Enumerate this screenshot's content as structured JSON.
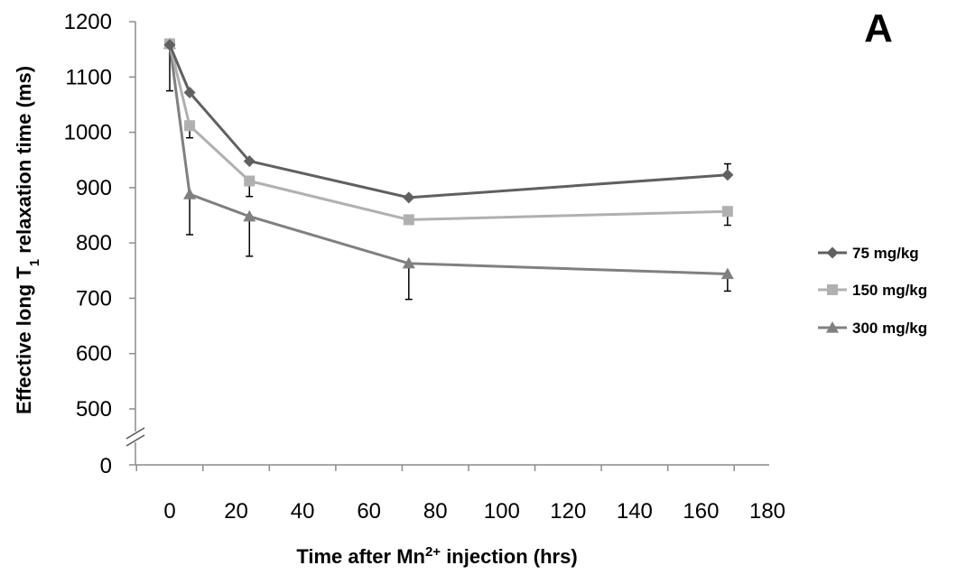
{
  "chart_data": {
    "type": "line",
    "panel_label": "A",
    "xlabel": {
      "prefix": "Time after Mn",
      "superscript": "2+",
      "suffix": " injection (hrs)"
    },
    "ylabel": {
      "prefix": "Effective long T",
      "subscript": "1",
      "suffix": " relaxation time (ms)"
    },
    "xlim": [
      -10,
      180
    ],
    "x_ticks": [
      0,
      20,
      40,
      60,
      80,
      100,
      120,
      140,
      160,
      180
    ],
    "y_ticks": [
      500,
      600,
      700,
      800,
      900,
      1000,
      1100,
      1200
    ],
    "y_axis_break": {
      "below": 450,
      "baseline_label": "0"
    },
    "y_baseline_tick": 0,
    "ylim": [
      450,
      1200
    ],
    "legend_position": "right",
    "series": [
      {
        "name": "75 mg/kg",
        "marker": "diamond",
        "color": "#606060",
        "x": [
          0,
          6,
          24,
          72,
          168
        ],
        "y": [
          1158,
          1072,
          948,
          882,
          923
        ],
        "error": [
          0,
          0,
          0,
          0,
          20
        ]
      },
      {
        "name": "150 mg/kg",
        "marker": "square",
        "color": "#b0b0b0",
        "x": [
          0,
          6,
          24,
          72,
          168
        ],
        "y": [
          1160,
          1012,
          912,
          842,
          857
        ],
        "error": [
          0,
          22,
          28,
          0,
          25
        ]
      },
      {
        "name": "300 mg/kg",
        "marker": "triangle",
        "color": "#808080",
        "x": [
          0,
          6,
          24,
          72,
          168
        ],
        "y": [
          1160,
          888,
          848,
          763,
          744
        ],
        "error": [
          85,
          73,
          72,
          65,
          31
        ]
      }
    ]
  }
}
